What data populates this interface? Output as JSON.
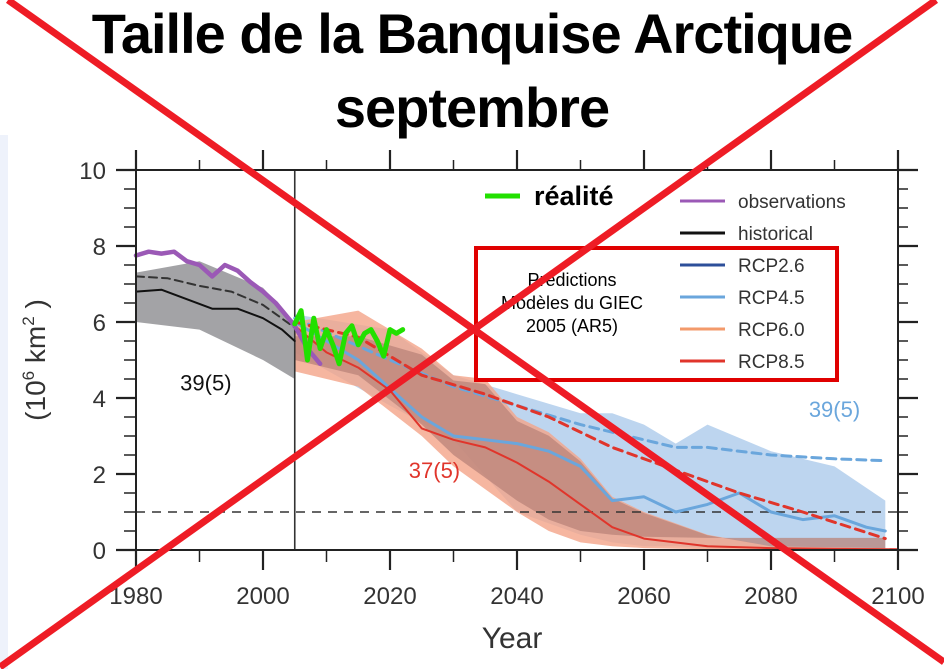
{
  "title": {
    "line1": "Taille de la Banquise Arctique",
    "line2": "septembre"
  },
  "annotations": {
    "realite_label": "réalité",
    "predictions_box": [
      "Prédictions",
      "Modèles du GIEC",
      "2005 (AR5)"
    ],
    "hist_count": "39(5)",
    "rcp85_count": "37(5)",
    "rcp45_count": "39(5)",
    "crossed_out": true
  },
  "colors": {
    "observations": "#9b59b6",
    "historical": "#111111",
    "rcp26": "#2d4f9a",
    "rcp45": "#6aa6dc",
    "rcp60": "#f39a6b",
    "rcp85": "#e0352b",
    "realite": "#22e000",
    "hist_band": "#a3a3a6",
    "rcp45_band": "#b9d3ee",
    "rcp85_band": "#f4a488",
    "overlap_band": "#b9837a",
    "cross": "#ee1c25",
    "legend_box": "#e00000"
  },
  "chart_data": {
    "type": "line",
    "title": "Taille de la Banquise Arctique septembre",
    "xlabel": "Year",
    "ylabel": "(10^6 km^2)",
    "xlim": [
      1980,
      2100
    ],
    "ylim": [
      0,
      10
    ],
    "xticks": [
      1980,
      2000,
      2020,
      2040,
      2060,
      2080,
      2100
    ],
    "yticks": [
      0,
      2,
      4,
      6,
      8,
      10
    ],
    "grid": false,
    "legend_position": "upper right",
    "legend": [
      "observations",
      "historical",
      "RCP2.6",
      "RCP4.5",
      "RCP6.0",
      "RCP8.5"
    ],
    "extra_legend": "réalité",
    "vertical_line_x": 2005,
    "horizontal_dashed_y": 1,
    "series": [
      {
        "name": "observations",
        "x": [
          1980,
          1982,
          1984,
          1986,
          1988,
          1990,
          1992,
          1994,
          1996,
          1998,
          2000,
          2002,
          2004,
          2005,
          2007,
          2009
        ],
        "values": [
          7.75,
          7.85,
          7.8,
          7.85,
          7.6,
          7.5,
          7.2,
          7.5,
          7.35,
          7.05,
          6.8,
          6.5,
          6.1,
          5.9,
          5.3,
          4.9
        ]
      },
      {
        "name": "historical (mean)",
        "x": [
          1980,
          1984,
          1988,
          1992,
          1996,
          2000,
          2003,
          2005
        ],
        "values": [
          6.8,
          6.85,
          6.6,
          6.35,
          6.35,
          6.1,
          5.8,
          5.5
        ]
      },
      {
        "name": "historical (subset, dashed)",
        "x": [
          1980,
          1985,
          1990,
          1995,
          2000,
          2005
        ],
        "values": [
          7.2,
          7.15,
          6.95,
          6.8,
          6.45,
          5.85
        ]
      },
      {
        "name": "réalité",
        "x": [
          2005,
          2006,
          2007,
          2008,
          2009,
          2010,
          2011,
          2012,
          2013,
          2014,
          2015,
          2016,
          2017,
          2018,
          2019,
          2020,
          2021,
          2022
        ],
        "values": [
          5.95,
          6.3,
          5.0,
          6.1,
          5.3,
          5.8,
          5.4,
          4.9,
          5.7,
          5.9,
          5.4,
          5.7,
          5.8,
          5.5,
          5.1,
          5.8,
          5.7,
          5.8
        ]
      },
      {
        "name": "RCP8.5 (mean)",
        "x": [
          2005,
          2010,
          2015,
          2020,
          2025,
          2030,
          2035,
          2040,
          2045,
          2050,
          2055,
          2060,
          2070,
          2080,
          2090,
          2100
        ],
        "values": [
          5.9,
          5.2,
          4.8,
          4.2,
          3.2,
          2.9,
          2.7,
          2.3,
          1.8,
          1.2,
          0.6,
          0.3,
          0.1,
          0.05,
          0.03,
          0.02
        ]
      },
      {
        "name": "RCP8.5 (subset, dashed)",
        "x": [
          2005,
          2015,
          2025,
          2035,
          2045,
          2055,
          2065,
          2075,
          2085,
          2098
        ],
        "values": [
          6.0,
          5.6,
          4.6,
          4.1,
          3.5,
          2.7,
          2.1,
          1.5,
          1.0,
          0.3
        ]
      },
      {
        "name": "RCP4.5 (mean)",
        "x": [
          2005,
          2015,
          2025,
          2030,
          2035,
          2040,
          2045,
          2050,
          2055,
          2060,
          2065,
          2070,
          2075,
          2080,
          2085,
          2090,
          2095,
          2098
        ],
        "values": [
          6.0,
          5.0,
          3.5,
          3.0,
          2.9,
          2.8,
          2.6,
          2.2,
          1.3,
          1.4,
          1.0,
          1.2,
          1.5,
          1.0,
          0.8,
          0.9,
          0.6,
          0.5
        ]
      },
      {
        "name": "RCP4.5 (subset, dashed)",
        "x": [
          2005,
          2020,
          2030,
          2040,
          2050,
          2060,
          2065,
          2070,
          2080,
          2090,
          2098
        ],
        "values": [
          6.1,
          5.0,
          4.3,
          3.8,
          3.3,
          2.9,
          2.7,
          2.7,
          2.5,
          2.4,
          2.35
        ]
      }
    ],
    "bands": [
      {
        "name": "historical range",
        "x": [
          1980,
          1990,
          2000,
          2005
        ],
        "upper": [
          7.3,
          7.6,
          6.9,
          6.0
        ],
        "lower": [
          6.0,
          5.8,
          5.0,
          4.5
        ]
      },
      {
        "name": "RCP4.5 range",
        "x": [
          2005,
          2020,
          2030,
          2040,
          2050,
          2055,
          2060,
          2065,
          2070,
          2080,
          2090,
          2098
        ],
        "upper": [
          6.2,
          5.8,
          4.6,
          4.1,
          3.6,
          3.6,
          3.3,
          2.8,
          3.3,
          2.6,
          2.2,
          1.3
        ],
        "lower": [
          5.2,
          3.8,
          2.9,
          1.0,
          0.4,
          0.2,
          0.1,
          0.1,
          0.05,
          0.05,
          0.05,
          0.05
        ]
      },
      {
        "name": "RCP8.5 range",
        "x": [
          2005,
          2015,
          2025,
          2030,
          2035,
          2040,
          2045,
          2050,
          2055,
          2060,
          2070,
          2080,
          2098
        ],
        "upper": [
          6.0,
          6.3,
          5.3,
          4.6,
          4.5,
          3.5,
          3.1,
          2.4,
          1.4,
          1.0,
          0.4,
          0.1,
          0.05
        ],
        "lower": [
          4.7,
          4.3,
          3.0,
          2.2,
          1.6,
          1.0,
          0.5,
          0.2,
          0.1,
          0.05,
          0.02,
          0.02,
          0.02
        ]
      }
    ],
    "annotations": [
      {
        "text": "39(5)",
        "x": 1991,
        "y": 4.2,
        "color": "#111111"
      },
      {
        "text": "37(5)",
        "x": 2027,
        "y": 1.9,
        "color": "#e0352b"
      },
      {
        "text": "39(5)",
        "x": 2090,
        "y": 3.5,
        "color": "#6aa6dc"
      }
    ]
  }
}
